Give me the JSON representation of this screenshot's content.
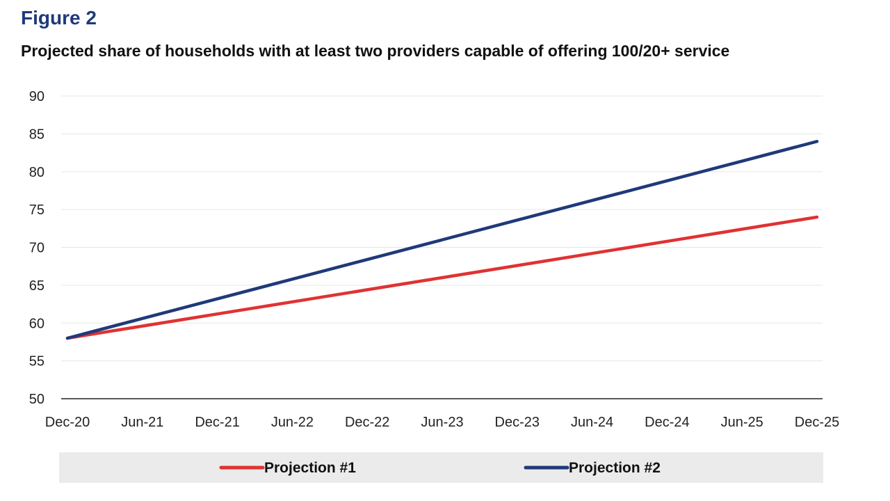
{
  "figure_label": "Figure 2",
  "chart_data": {
    "type": "line",
    "title": "Projected share of households with at least two providers capable of offering 100/20+ service",
    "xlabel": "",
    "ylabel": "",
    "categories": [
      "Dec-20",
      "Jun-21",
      "Dec-21",
      "Jun-22",
      "Dec-22",
      "Jun-23",
      "Dec-23",
      "Jun-24",
      "Dec-24",
      "Jun-25",
      "Dec-25"
    ],
    "ylim": [
      50,
      90
    ],
    "yticks": [
      50,
      55,
      60,
      65,
      70,
      75,
      80,
      85,
      90
    ],
    "grid": true,
    "legend_position": "bottom",
    "series": [
      {
        "name": "Projection #1",
        "color": "#e03232",
        "values": [
          58,
          59.6,
          61.2,
          62.8,
          64.4,
          66,
          67.6,
          69.2,
          70.8,
          72.4,
          74
        ]
      },
      {
        "name": "Projection #2",
        "color": "#1f3a7a",
        "values": [
          58,
          60.6,
          63.2,
          65.8,
          68.4,
          71,
          73.6,
          76.2,
          78.8,
          81.4,
          84
        ]
      }
    ]
  }
}
